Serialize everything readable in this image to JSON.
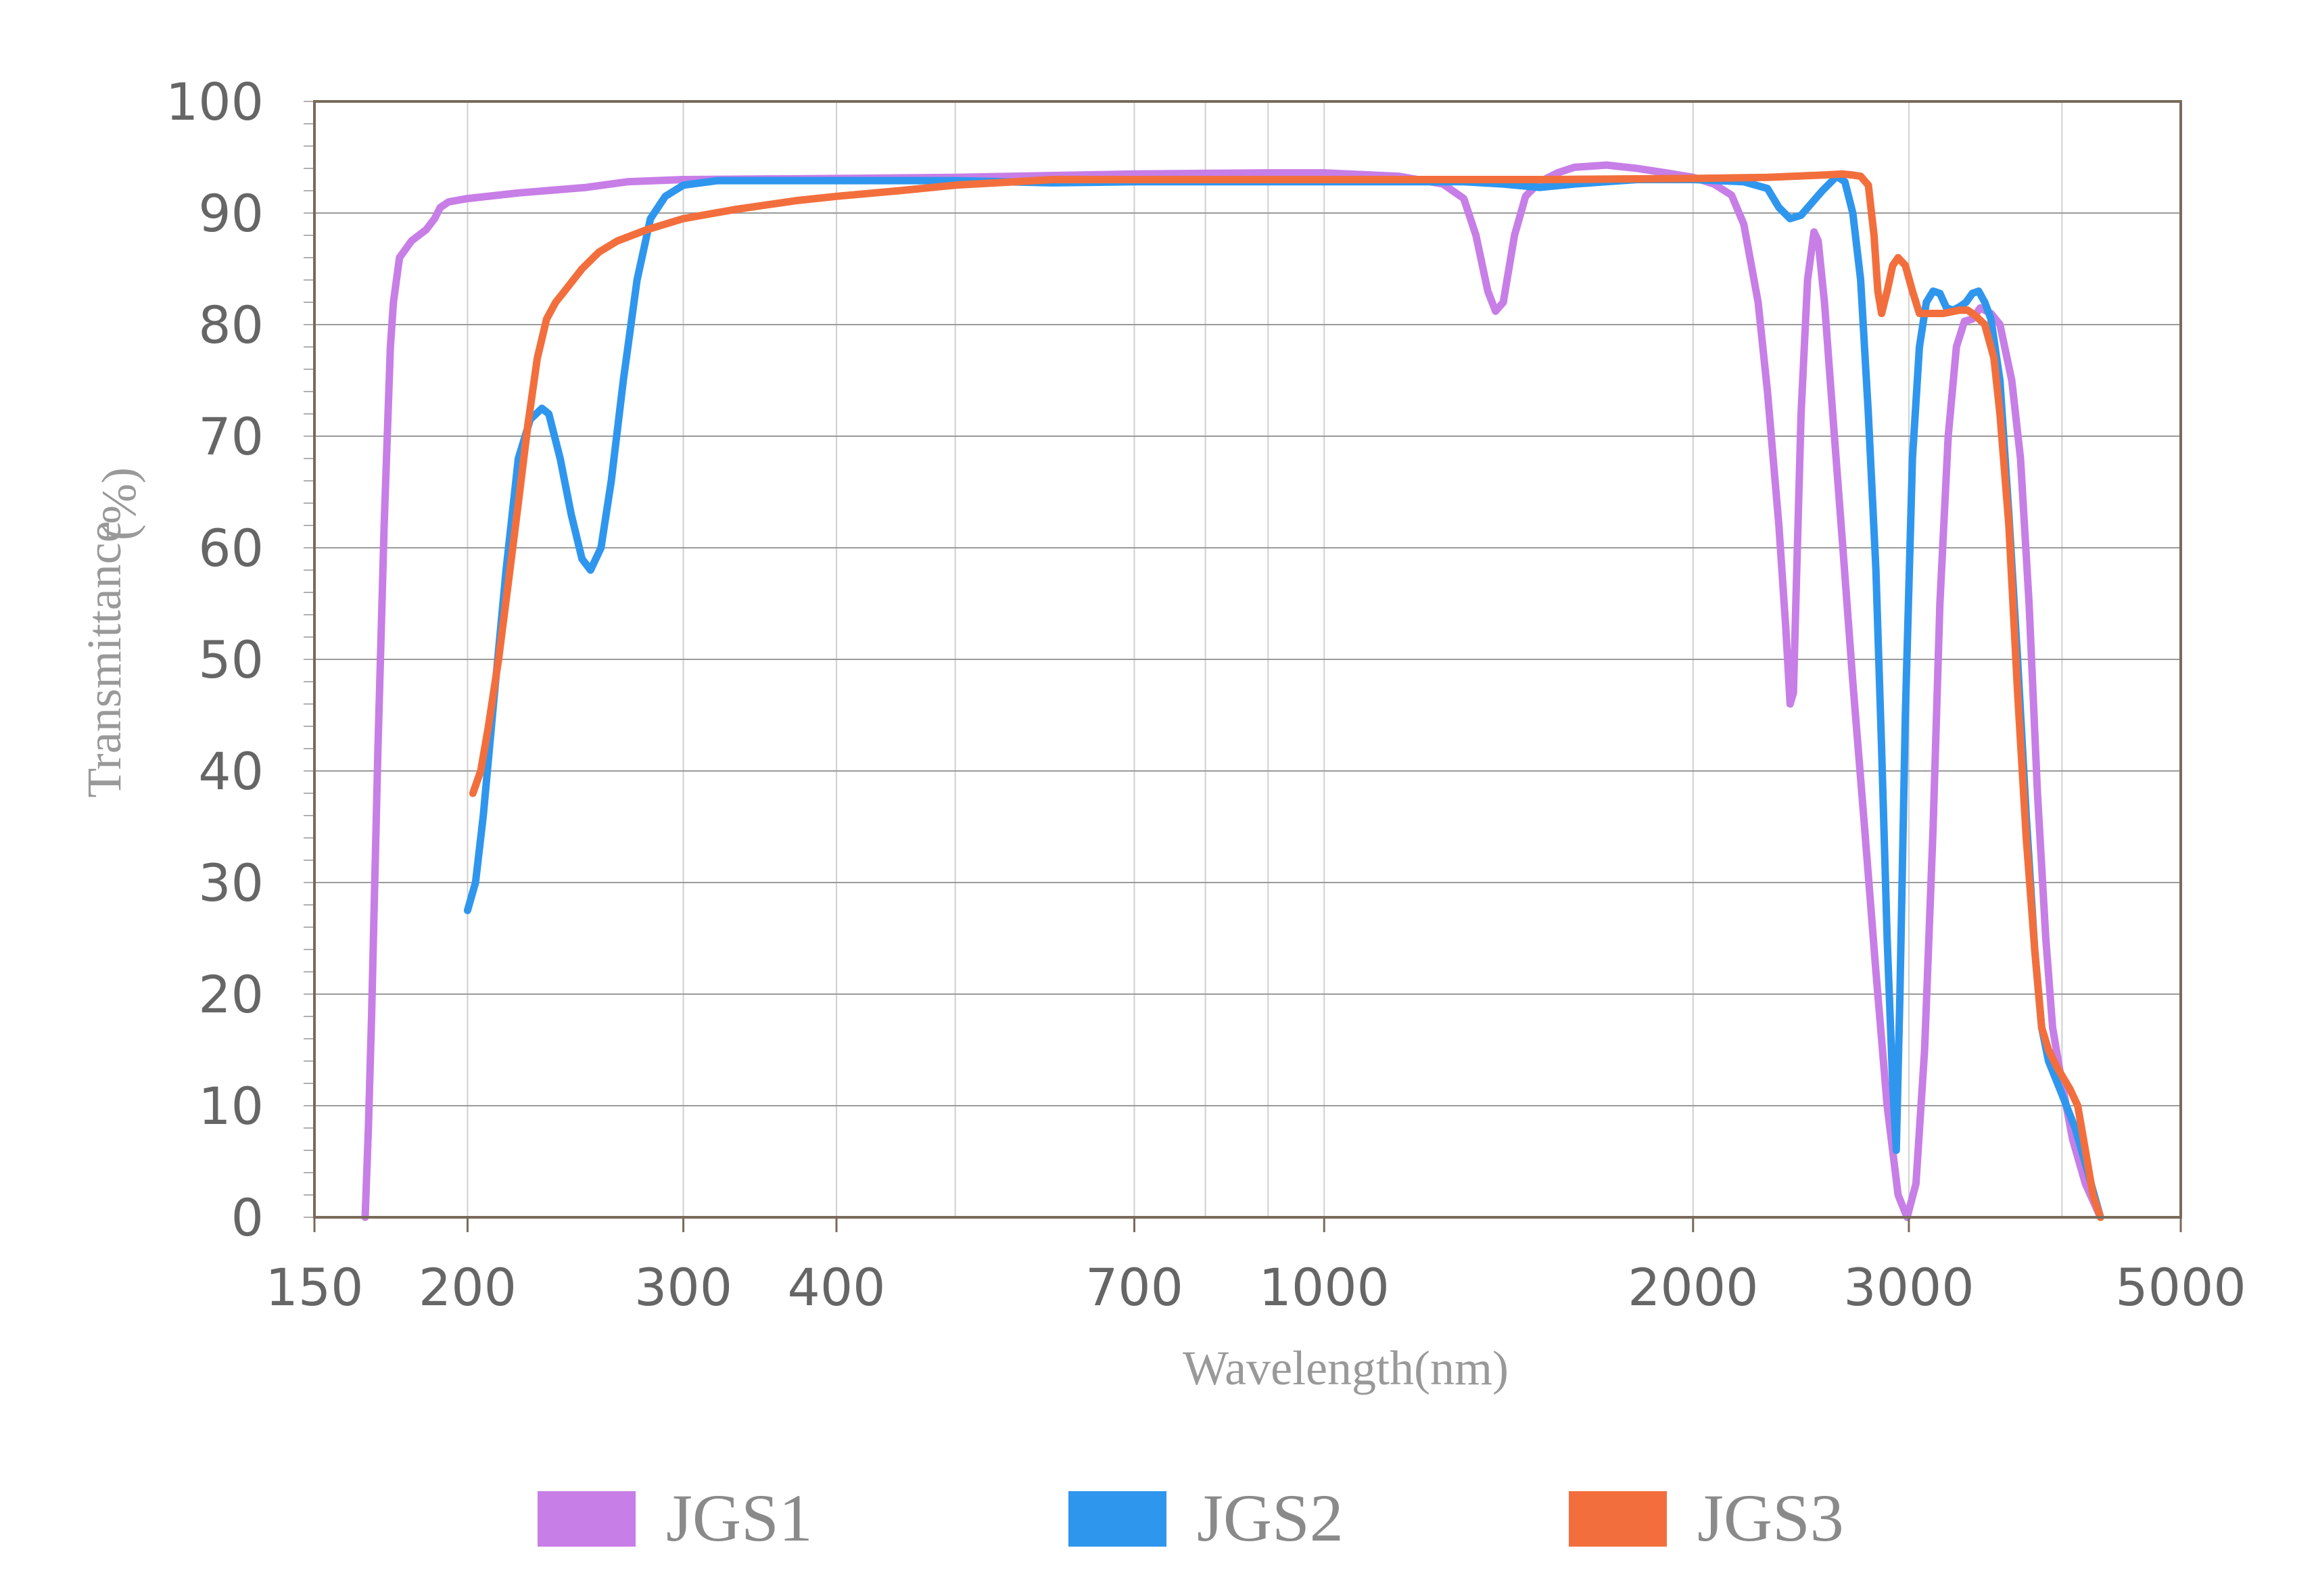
{
  "chart_data": {
    "type": "line",
    "title": "",
    "xlabel": "Wavelength(nm)",
    "ylabel_main": "Transmittance",
    "ylabel_unit": "(%)",
    "x_scale": "log",
    "xlim": [
      150,
      5000
    ],
    "ylim": [
      0,
      100
    ],
    "x_ticks": [
      150,
      200,
      300,
      400,
      700,
      1000,
      2000,
      3000,
      5000
    ],
    "x_tick_labels": [
      "150",
      "200",
      "300",
      "400",
      "700",
      "1000",
      "2000",
      "3000",
      "5000"
    ],
    "x_gridlines": [
      150,
      200,
      300,
      400,
      500,
      700,
      800,
      900,
      1000,
      2000,
      3000,
      4000,
      5000
    ],
    "y_ticks": [
      0,
      10,
      20,
      30,
      40,
      50,
      60,
      70,
      80,
      90,
      100
    ],
    "y_tick_labels": [
      "0",
      "10",
      "20",
      "30",
      "40",
      "50",
      "60",
      "70",
      "80",
      "90",
      "100"
    ],
    "grid": true,
    "legend_position": "bottom",
    "series": [
      {
        "name": "JGS1",
        "color": "#c77ee6",
        "points": [
          [
            165,
            0
          ],
          [
            166,
            8
          ],
          [
            167,
            18
          ],
          [
            168,
            30
          ],
          [
            169,
            42
          ],
          [
            170,
            52
          ],
          [
            171,
            62
          ],
          [
            172,
            70
          ],
          [
            173,
            78
          ],
          [
            174,
            82
          ],
          [
            176,
            86
          ],
          [
            180,
            87.5
          ],
          [
            185,
            88.5
          ],
          [
            188,
            89.5
          ],
          [
            190,
            90.5
          ],
          [
            193,
            91
          ],
          [
            200,
            91.3
          ],
          [
            220,
            91.8
          ],
          [
            250,
            92.3
          ],
          [
            270,
            92.8
          ],
          [
            300,
            93
          ],
          [
            400,
            93.1
          ],
          [
            500,
            93.2
          ],
          [
            700,
            93.5
          ],
          [
            900,
            93.6
          ],
          [
            1000,
            93.6
          ],
          [
            1150,
            93.3
          ],
          [
            1250,
            92.6
          ],
          [
            1300,
            91.3
          ],
          [
            1330,
            88
          ],
          [
            1360,
            83
          ],
          [
            1380,
            81.2
          ],
          [
            1400,
            82
          ],
          [
            1430,
            88
          ],
          [
            1460,
            91.5
          ],
          [
            1500,
            92.8
          ],
          [
            1550,
            93.6
          ],
          [
            1600,
            94.1
          ],
          [
            1700,
            94.3
          ],
          [
            1800,
            94
          ],
          [
            1900,
            93.6
          ],
          [
            2000,
            93.2
          ],
          [
            2080,
            92.6
          ],
          [
            2150,
            91.6
          ],
          [
            2200,
            89
          ],
          [
            2260,
            82
          ],
          [
            2300,
            74
          ],
          [
            2350,
            62
          ],
          [
            2380,
            53
          ],
          [
            2400,
            46
          ],
          [
            2415,
            47
          ],
          [
            2430,
            58
          ],
          [
            2450,
            72
          ],
          [
            2480,
            84
          ],
          [
            2510,
            88.3
          ],
          [
            2530,
            87.5
          ],
          [
            2560,
            82
          ],
          [
            2600,
            72
          ],
          [
            2650,
            60
          ],
          [
            2700,
            48
          ],
          [
            2760,
            35
          ],
          [
            2820,
            22
          ],
          [
            2880,
            10
          ],
          [
            2940,
            2
          ],
          [
            2990,
            0
          ],
          [
            3040,
            3
          ],
          [
            3090,
            15
          ],
          [
            3140,
            35
          ],
          [
            3180,
            55
          ],
          [
            3230,
            70
          ],
          [
            3280,
            78
          ],
          [
            3330,
            80.3
          ],
          [
            3380,
            80.5
          ],
          [
            3430,
            81.5
          ],
          [
            3500,
            81
          ],
          [
            3560,
            80
          ],
          [
            3640,
            75
          ],
          [
            3700,
            68
          ],
          [
            3760,
            55
          ],
          [
            3820,
            38
          ],
          [
            3880,
            25
          ],
          [
            3930,
            17
          ],
          [
            4000,
            12
          ],
          [
            4080,
            7
          ],
          [
            4180,
            3
          ],
          [
            4300,
            0
          ]
        ]
      },
      {
        "name": "JGS2",
        "color": "#2f96ee",
        "points": [
          [
            200,
            27.5
          ],
          [
            203,
            30
          ],
          [
            206,
            36
          ],
          [
            210,
            46
          ],
          [
            215,
            58
          ],
          [
            220,
            68
          ],
          [
            225,
            71.5
          ],
          [
            230,
            72.5
          ],
          [
            233,
            72
          ],
          [
            238,
            68
          ],
          [
            243,
            63
          ],
          [
            248,
            59
          ],
          [
            252,
            58
          ],
          [
            257,
            60
          ],
          [
            262,
            66
          ],
          [
            268,
            75
          ],
          [
            275,
            84
          ],
          [
            282,
            89.5
          ],
          [
            290,
            91.5
          ],
          [
            300,
            92.5
          ],
          [
            320,
            92.9
          ],
          [
            400,
            92.9
          ],
          [
            500,
            92.9
          ],
          [
            600,
            92.7
          ],
          [
            700,
            92.8
          ],
          [
            1000,
            92.8
          ],
          [
            1200,
            92.8
          ],
          [
            1300,
            92.8
          ],
          [
            1400,
            92.6
          ],
          [
            1500,
            92.3
          ],
          [
            1600,
            92.6
          ],
          [
            1800,
            93
          ],
          [
            2000,
            93
          ],
          [
            2200,
            92.8
          ],
          [
            2300,
            92.2
          ],
          [
            2350,
            90.5
          ],
          [
            2400,
            89.5
          ],
          [
            2450,
            89.8
          ],
          [
            2550,
            92
          ],
          [
            2620,
            93.3
          ],
          [
            2660,
            92.8
          ],
          [
            2700,
            90
          ],
          [
            2740,
            84
          ],
          [
            2780,
            72
          ],
          [
            2820,
            58
          ],
          [
            2850,
            42
          ],
          [
            2880,
            25
          ],
          [
            2910,
            12
          ],
          [
            2930,
            6
          ],
          [
            2950,
            20
          ],
          [
            2980,
            45
          ],
          [
            3020,
            68
          ],
          [
            3060,
            78
          ],
          [
            3100,
            82
          ],
          [
            3140,
            83
          ],
          [
            3180,
            82.8
          ],
          [
            3220,
            81.5
          ],
          [
            3260,
            81.3
          ],
          [
            3300,
            81.6
          ],
          [
            3340,
            82
          ],
          [
            3380,
            82.8
          ],
          [
            3420,
            83
          ],
          [
            3460,
            82
          ],
          [
            3500,
            80.5
          ],
          [
            3560,
            75
          ],
          [
            3620,
            63
          ],
          [
            3680,
            50
          ],
          [
            3740,
            36
          ],
          [
            3800,
            24
          ],
          [
            3850,
            17
          ],
          [
            3900,
            14
          ],
          [
            4000,
            11
          ],
          [
            4100,
            8
          ],
          [
            4200,
            4
          ],
          [
            4300,
            0
          ]
        ]
      },
      {
        "name": "JGS3",
        "color": "#f26f3d",
        "points": [
          [
            202,
            38
          ],
          [
            205,
            40
          ],
          [
            208,
            44
          ],
          [
            212,
            50
          ],
          [
            216,
            57
          ],
          [
            220,
            64
          ],
          [
            224,
            71
          ],
          [
            228,
            77
          ],
          [
            232,
            80.5
          ],
          [
            236,
            82
          ],
          [
            240,
            83
          ],
          [
            248,
            85
          ],
          [
            256,
            86.5
          ],
          [
            265,
            87.5
          ],
          [
            280,
            88.5
          ],
          [
            300,
            89.5
          ],
          [
            330,
            90.3
          ],
          [
            370,
            91.1
          ],
          [
            400,
            91.5
          ],
          [
            450,
            92
          ],
          [
            500,
            92.5
          ],
          [
            560,
            92.8
          ],
          [
            600,
            93
          ],
          [
            700,
            93
          ],
          [
            1000,
            93
          ],
          [
            1500,
            93
          ],
          [
            2000,
            93.1
          ],
          [
            2300,
            93.2
          ],
          [
            2550,
            93.4
          ],
          [
            2650,
            93.5
          ],
          [
            2700,
            93.4
          ],
          [
            2740,
            93.3
          ],
          [
            2780,
            92.5
          ],
          [
            2810,
            88
          ],
          [
            2830,
            83
          ],
          [
            2850,
            81
          ],
          [
            2880,
            83
          ],
          [
            2910,
            85.3
          ],
          [
            2940,
            86
          ],
          [
            2980,
            85.3
          ],
          [
            3020,
            83
          ],
          [
            3060,
            81
          ],
          [
            3100,
            81
          ],
          [
            3200,
            81
          ],
          [
            3300,
            81.3
          ],
          [
            3350,
            81.3
          ],
          [
            3400,
            80.8
          ],
          [
            3460,
            80
          ],
          [
            3520,
            77
          ],
          [
            3560,
            72
          ],
          [
            3620,
            62
          ],
          [
            3680,
            47
          ],
          [
            3740,
            34
          ],
          [
            3800,
            24
          ],
          [
            3850,
            17
          ],
          [
            3900,
            15
          ],
          [
            3960,
            13.5
          ],
          [
            4060,
            11.5
          ],
          [
            4120,
            10
          ],
          [
            4180,
            6
          ],
          [
            4240,
            2
          ],
          [
            4300,
            0
          ]
        ]
      }
    ]
  }
}
